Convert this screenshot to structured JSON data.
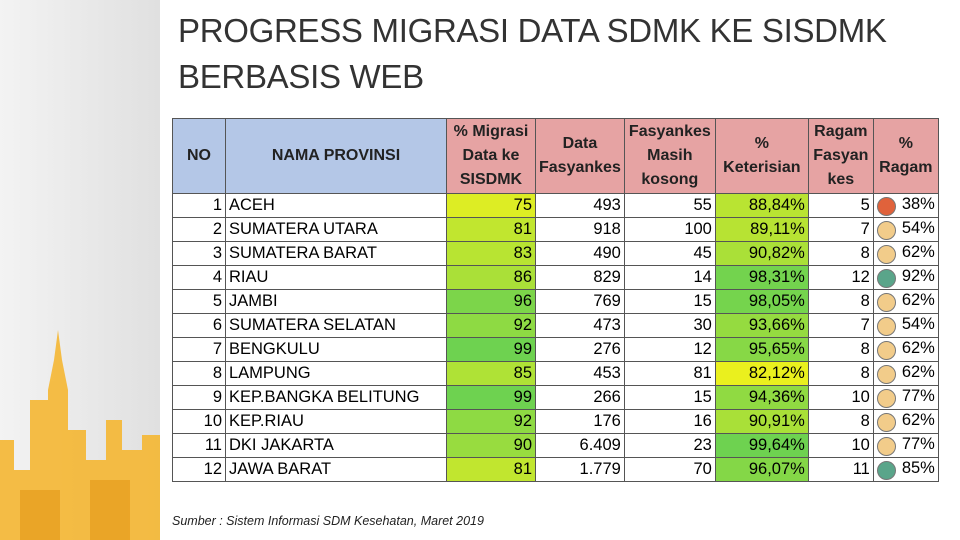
{
  "header": {
    "title": "PROGRESS MIGRASI DATA SDMK KE SISDMK BERBASIS WEB"
  },
  "table": {
    "columns": [
      "NO",
      "NAMA PROVINSI",
      "% Migrasi Data ke SISDMK",
      "Data Fasyankes",
      "Fasyankes Masih kosong",
      "% Keterisian",
      "Ragam Fasyan kes",
      "% Ragam"
    ],
    "rows": [
      [
        "1",
        "ACEH",
        "75",
        "493",
        "55",
        "88,84%",
        "5",
        "38%"
      ],
      [
        "2",
        "SUMATERA UTARA",
        "81",
        "918",
        "100",
        "89,11%",
        "7",
        "54%"
      ],
      [
        "3",
        "SUMATERA BARAT",
        "83",
        "490",
        "45",
        "90,82%",
        "8",
        "62%"
      ],
      [
        "4",
        "RIAU",
        "86",
        "829",
        "14",
        "98,31%",
        "12",
        "92%"
      ],
      [
        "5",
        "JAMBI",
        "96",
        "769",
        "15",
        "98,05%",
        "8",
        "62%"
      ],
      [
        "6",
        "SUMATERA SELATAN",
        "92",
        "473",
        "30",
        "93,66%",
        "7",
        "54%"
      ],
      [
        "7",
        "BENGKULU",
        "99",
        "276",
        "12",
        "95,65%",
        "8",
        "62%"
      ],
      [
        "8",
        "LAMPUNG",
        "85",
        "453",
        "81",
        "82,12%",
        "8",
        "62%"
      ],
      [
        "9",
        "KEP.BANGKA BELITUNG",
        "99",
        "266",
        "15",
        "94,36%",
        "10",
        "77%"
      ],
      [
        "10",
        "KEP.RIAU",
        "92",
        "176",
        "16",
        "90,91%",
        "8",
        "62%"
      ],
      [
        "11",
        "DKI JAKARTA",
        "90",
        "6.409",
        "23",
        "99,64%",
        "10",
        "77%"
      ],
      [
        "12",
        "JAWA BARAT",
        "81",
        "1.779",
        "70",
        "96,07%",
        "11",
        "85%"
      ]
    ]
  },
  "footer": {
    "source": "Sumber : Sistem Informasi SDM Kesehatan, Maret 2019"
  }
}
